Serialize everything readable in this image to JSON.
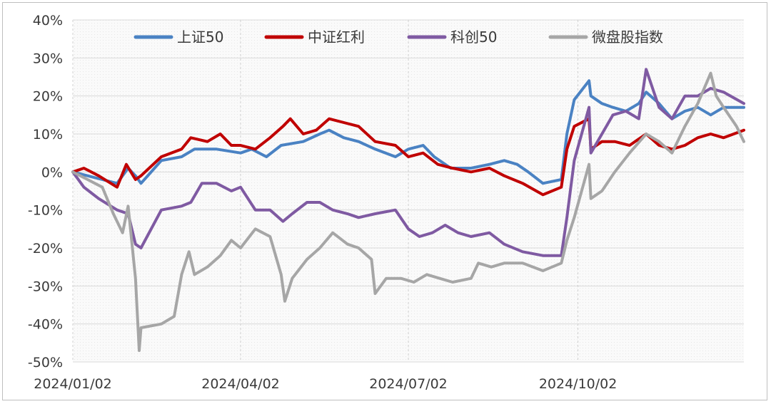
{
  "chart_data": {
    "type": "line",
    "title": "",
    "xlabel": "",
    "ylabel": "",
    "ylim": [
      -50,
      40
    ],
    "y_ticks": [
      "40%",
      "30%",
      "20%",
      "10%",
      "0%",
      "-10%",
      "-20%",
      "-30%",
      "-40%",
      "-50%"
    ],
    "x_ticks": [
      "2024/01/02",
      "2024/04/02",
      "2024/07/02",
      "2024/10/02"
    ],
    "grid": true,
    "legend_position": "top",
    "series": [
      {
        "name": "上证50",
        "color": "#4a82c3",
        "points": [
          [
            "2024/01/02",
            0
          ],
          [
            "2024/01/10",
            -1
          ],
          [
            "2024/01/18",
            -2
          ],
          [
            "2024/01/26",
            -3
          ],
          [
            "2024/02/01",
            1
          ],
          [
            "2024/02/05",
            -1
          ],
          [
            "2024/02/08",
            -3
          ],
          [
            "2024/02/19",
            3
          ],
          [
            "2024/03/01",
            4
          ],
          [
            "2024/03/08",
            6
          ],
          [
            "2024/03/20",
            6
          ],
          [
            "2024/04/02",
            5
          ],
          [
            "2024/04/08",
            6
          ],
          [
            "2024/04/16",
            4
          ],
          [
            "2024/04/24",
            7
          ],
          [
            "2024/05/06",
            8
          ],
          [
            "2024/05/15",
            10
          ],
          [
            "2024/05/20",
            11
          ],
          [
            "2024/05/28",
            9
          ],
          [
            "2024/06/05",
            8
          ],
          [
            "2024/06/14",
            6
          ],
          [
            "2024/06/25",
            4
          ],
          [
            "2024/07/02",
            6
          ],
          [
            "2024/07/10",
            7
          ],
          [
            "2024/07/16",
            4
          ],
          [
            "2024/07/25",
            1
          ],
          [
            "2024/08/05",
            1
          ],
          [
            "2024/08/15",
            2
          ],
          [
            "2024/08/23",
            3
          ],
          [
            "2024/08/30",
            2
          ],
          [
            "2024/09/05",
            0
          ],
          [
            "2024/09/13",
            -3
          ],
          [
            "2024/09/23",
            -2
          ],
          [
            "2024/09/26",
            10
          ],
          [
            "2024/09/30",
            19
          ],
          [
            "2024/10/08",
            24
          ],
          [
            "2024/10/09",
            20
          ],
          [
            "2024/10/15",
            18
          ],
          [
            "2024/10/21",
            17
          ],
          [
            "2024/10/28",
            16
          ],
          [
            "2024/11/04",
            18
          ],
          [
            "2024/11/08",
            21
          ],
          [
            "2024/11/15",
            18
          ],
          [
            "2024/11/22",
            14
          ],
          [
            "2024/11/29",
            16
          ],
          [
            "2024/12/06",
            17
          ],
          [
            "2024/12/13",
            15
          ],
          [
            "2024/12/20",
            17
          ],
          [
            "2024/12/31",
            17
          ]
        ]
      },
      {
        "name": "中证红利",
        "color": "#c00000",
        "points": [
          [
            "2024/01/02",
            0
          ],
          [
            "2024/01/08",
            1
          ],
          [
            "2024/01/16",
            -1
          ],
          [
            "2024/01/26",
            -4
          ],
          [
            "2024/01/31",
            2
          ],
          [
            "2024/02/05",
            -2
          ],
          [
            "2024/02/08",
            -1
          ],
          [
            "2024/02/19",
            4
          ],
          [
            "2024/03/01",
            6
          ],
          [
            "2024/03/06",
            9
          ],
          [
            "2024/03/15",
            8
          ],
          [
            "2024/03/22",
            10
          ],
          [
            "2024/03/28",
            7
          ],
          [
            "2024/04/02",
            7
          ],
          [
            "2024/04/10",
            6
          ],
          [
            "2024/04/18",
            9
          ],
          [
            "2024/04/25",
            12
          ],
          [
            "2024/04/29",
            14
          ],
          [
            "2024/05/06",
            10
          ],
          [
            "2024/05/13",
            11
          ],
          [
            "2024/05/20",
            14
          ],
          [
            "2024/05/28",
            13
          ],
          [
            "2024/06/05",
            12
          ],
          [
            "2024/06/14",
            8
          ],
          [
            "2024/06/25",
            7
          ],
          [
            "2024/07/02",
            4
          ],
          [
            "2024/07/10",
            5
          ],
          [
            "2024/07/18",
            2
          ],
          [
            "2024/07/26",
            1
          ],
          [
            "2024/08/05",
            0
          ],
          [
            "2024/08/15",
            1
          ],
          [
            "2024/08/23",
            -1
          ],
          [
            "2024/09/02",
            -3
          ],
          [
            "2024/09/13",
            -6
          ],
          [
            "2024/09/23",
            -4
          ],
          [
            "2024/09/26",
            6
          ],
          [
            "2024/09/30",
            12
          ],
          [
            "2024/10/08",
            14
          ],
          [
            "2024/10/09",
            6
          ],
          [
            "2024/10/15",
            8
          ],
          [
            "2024/10/22",
            8
          ],
          [
            "2024/10/30",
            7
          ],
          [
            "2024/11/08",
            10
          ],
          [
            "2024/11/15",
            7
          ],
          [
            "2024/11/22",
            6
          ],
          [
            "2024/11/29",
            7
          ],
          [
            "2024/12/06",
            9
          ],
          [
            "2024/12/13",
            10
          ],
          [
            "2024/12/20",
            9
          ],
          [
            "2024/12/31",
            11
          ]
        ]
      },
      {
        "name": "科创50",
        "color": "#7f5aa2",
        "points": [
          [
            "2024/01/02",
            0
          ],
          [
            "2024/01/08",
            -4
          ],
          [
            "2024/01/16",
            -7
          ],
          [
            "2024/01/26",
            -10
          ],
          [
            "2024/02/01",
            -11
          ],
          [
            "2024/02/05",
            -19
          ],
          [
            "2024/02/08",
            -20
          ],
          [
            "2024/02/19",
            -10
          ],
          [
            "2024/03/01",
            -9
          ],
          [
            "2024/03/06",
            -8
          ],
          [
            "2024/03/12",
            -3
          ],
          [
            "2024/03/20",
            -3
          ],
          [
            "2024/03/28",
            -5
          ],
          [
            "2024/04/02",
            -4
          ],
          [
            "2024/04/10",
            -10
          ],
          [
            "2024/04/18",
            -10
          ],
          [
            "2024/04/25",
            -13
          ],
          [
            "2024/04/30",
            -11
          ],
          [
            "2024/05/08",
            -8
          ],
          [
            "2024/05/15",
            -8
          ],
          [
            "2024/05/22",
            -10
          ],
          [
            "2024/05/30",
            -11
          ],
          [
            "2024/06/05",
            -12
          ],
          [
            "2024/06/14",
            -11
          ],
          [
            "2024/06/25",
            -10
          ],
          [
            "2024/07/02",
            -15
          ],
          [
            "2024/07/08",
            -17
          ],
          [
            "2024/07/15",
            -16
          ],
          [
            "2024/07/22",
            -14
          ],
          [
            "2024/07/29",
            -16
          ],
          [
            "2024/08/05",
            -17
          ],
          [
            "2024/08/15",
            -16
          ],
          [
            "2024/08/23",
            -19
          ],
          [
            "2024/09/02",
            -21
          ],
          [
            "2024/09/13",
            -22
          ],
          [
            "2024/09/23",
            -22
          ],
          [
            "2024/09/26",
            -12
          ],
          [
            "2024/09/30",
            3
          ],
          [
            "2024/10/08",
            17
          ],
          [
            "2024/10/09",
            5
          ],
          [
            "2024/10/15",
            10
          ],
          [
            "2024/10/21",
            15
          ],
          [
            "2024/10/28",
            16
          ],
          [
            "2024/11/04",
            14
          ],
          [
            "2024/11/08",
            27
          ],
          [
            "2024/11/15",
            17
          ],
          [
            "2024/11/22",
            14
          ],
          [
            "2024/11/29",
            20
          ],
          [
            "2024/12/06",
            20
          ],
          [
            "2024/12/13",
            22
          ],
          [
            "2024/12/20",
            21
          ],
          [
            "2024/12/31",
            18
          ]
        ]
      },
      {
        "name": "微盘股指数",
        "color": "#a6a6a6",
        "points": [
          [
            "2024/01/02",
            0
          ],
          [
            "2024/01/10",
            -2
          ],
          [
            "2024/01/18",
            -4
          ],
          [
            "2024/01/24",
            -11
          ],
          [
            "2024/01/29",
            -16
          ],
          [
            "2024/02/01",
            -9
          ],
          [
            "2024/02/05",
            -28
          ],
          [
            "2024/02/07",
            -47
          ],
          [
            "2024/02/08",
            -41
          ],
          [
            "2024/02/19",
            -40
          ],
          [
            "2024/02/26",
            -38
          ],
          [
            "2024/03/01",
            -27
          ],
          [
            "2024/03/05",
            -21
          ],
          [
            "2024/03/08",
            -27
          ],
          [
            "2024/03/15",
            -25
          ],
          [
            "2024/03/22",
            -22
          ],
          [
            "2024/03/28",
            -18
          ],
          [
            "2024/04/02",
            -20
          ],
          [
            "2024/04/10",
            -15
          ],
          [
            "2024/04/18",
            -17
          ],
          [
            "2024/04/24",
            -27
          ],
          [
            "2024/04/26",
            -34
          ],
          [
            "2024/04/30",
            -28
          ],
          [
            "2024/05/08",
            -23
          ],
          [
            "2024/05/15",
            -20
          ],
          [
            "2024/05/22",
            -16
          ],
          [
            "2024/05/30",
            -19
          ],
          [
            "2024/06/05",
            -20
          ],
          [
            "2024/06/12",
            -23
          ],
          [
            "2024/06/14",
            -32
          ],
          [
            "2024/06/20",
            -28
          ],
          [
            "2024/06/28",
            -28
          ],
          [
            "2024/07/05",
            -29
          ],
          [
            "2024/07/12",
            -27
          ],
          [
            "2024/07/19",
            -28
          ],
          [
            "2024/07/26",
            -29
          ],
          [
            "2024/08/05",
            -28
          ],
          [
            "2024/08/09",
            -24
          ],
          [
            "2024/08/16",
            -25
          ],
          [
            "2024/08/23",
            -24
          ],
          [
            "2024/09/02",
            -24
          ],
          [
            "2024/09/13",
            -26
          ],
          [
            "2024/09/23",
            -24
          ],
          [
            "2024/09/26",
            -18
          ],
          [
            "2024/09/30",
            -12
          ],
          [
            "2024/10/08",
            2
          ],
          [
            "2024/10/09",
            -7
          ],
          [
            "2024/10/15",
            -5
          ],
          [
            "2024/10/22",
            0
          ],
          [
            "2024/10/30",
            5
          ],
          [
            "2024/11/08",
            10
          ],
          [
            "2024/11/15",
            8
          ],
          [
            "2024/11/22",
            5
          ],
          [
            "2024/11/29",
            12
          ],
          [
            "2024/12/06",
            18
          ],
          [
            "2024/12/13",
            26
          ],
          [
            "2024/12/16",
            20
          ],
          [
            "2024/12/20",
            17
          ],
          [
            "2024/12/27",
            12
          ],
          [
            "2024/12/31",
            8
          ]
        ]
      }
    ]
  }
}
